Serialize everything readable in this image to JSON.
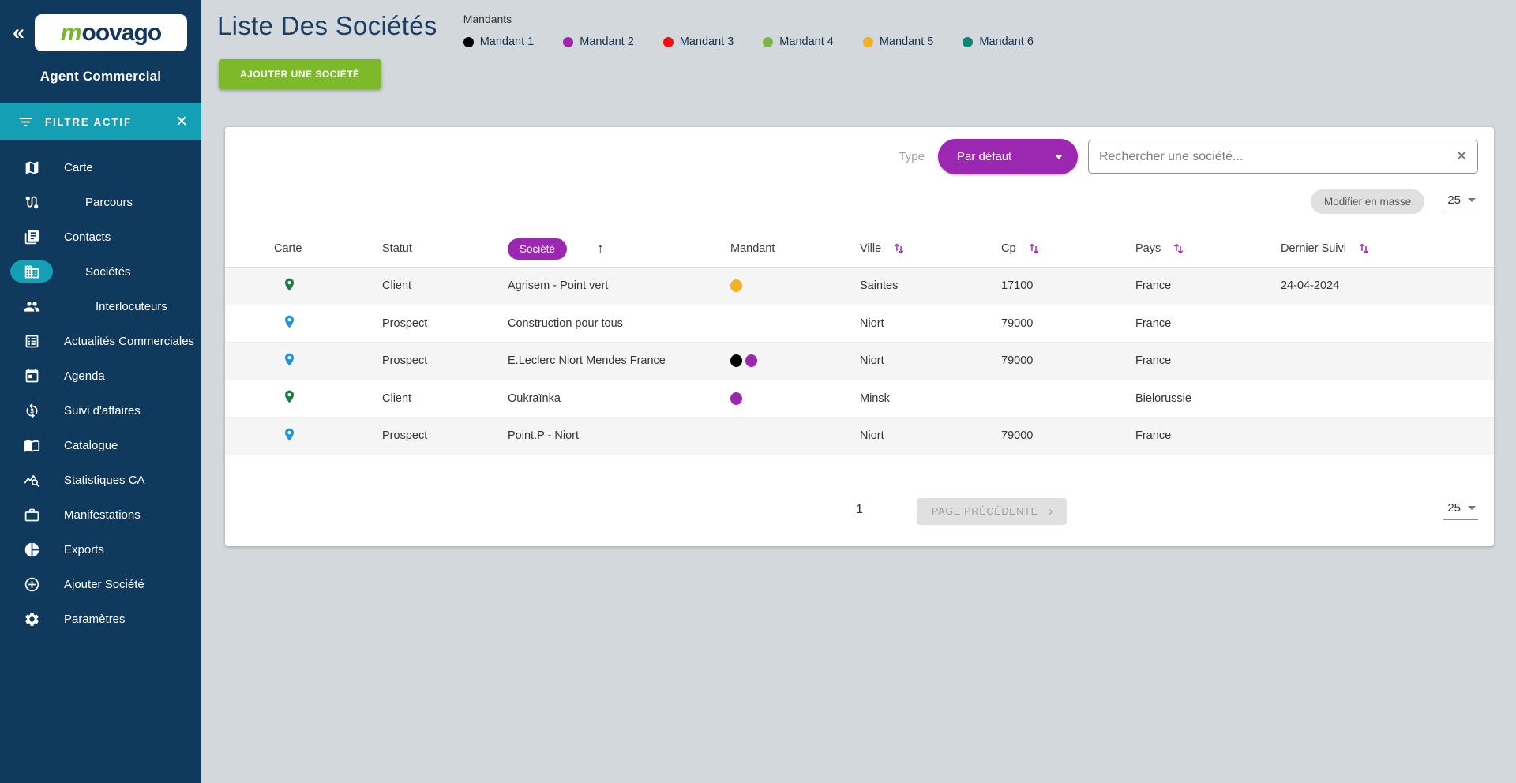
{
  "colors": {
    "sidebar_bg": "#0f3a5e",
    "teal_accent": "#149fb5",
    "purple_accent": "#9c27b0",
    "green_button": "#7db928",
    "client_pin": "#1c7c3e",
    "prospect_pin": "#2196d6"
  },
  "sidebar": {
    "collapse_glyph": "«",
    "logo": {
      "first": "m",
      "rest": "oovago"
    },
    "subtitle": "Agent Commercial",
    "filter_bar": {
      "label": "FILTRE ACTIF",
      "close_glyph": "✕"
    },
    "items": [
      {
        "id": "carte",
        "label": "Carte",
        "icon": "map",
        "indent": 0,
        "active": false
      },
      {
        "id": "parcours",
        "label": "Parcours",
        "icon": "route",
        "indent": 1,
        "active": false
      },
      {
        "id": "contacts",
        "label": "Contacts",
        "icon": "contacts",
        "indent": 0,
        "active": false
      },
      {
        "id": "societes",
        "label": "Sociétés",
        "icon": "building",
        "indent": 1,
        "active": true
      },
      {
        "id": "interlocuteurs",
        "label": "Interlocuteurs",
        "icon": "people",
        "indent": 2,
        "active": false
      },
      {
        "id": "actualites-commerciales",
        "label": "Actualités Commerciales",
        "icon": "news-list",
        "indent": 0,
        "active": false
      },
      {
        "id": "agenda",
        "label": "Agenda",
        "icon": "calendar",
        "indent": 0,
        "active": false
      },
      {
        "id": "suivi-daffaires",
        "label": "Suivi d'affaires",
        "icon": "money-sync",
        "indent": 0,
        "active": false
      },
      {
        "id": "catalogue",
        "label": "Catalogue",
        "icon": "open-book",
        "indent": 0,
        "active": false
      },
      {
        "id": "statistiques-ca",
        "label": "Statistiques CA",
        "icon": "stats-search",
        "indent": 0,
        "active": false
      },
      {
        "id": "manifestations",
        "label": "Manifestations",
        "icon": "briefcase",
        "indent": 0,
        "active": false
      },
      {
        "id": "exports",
        "label": "Exports",
        "icon": "pie-chart",
        "indent": 0,
        "active": false
      },
      {
        "id": "ajouter-societe",
        "label": "Ajouter Société",
        "icon": "plus-circle",
        "indent": 0,
        "active": false
      },
      {
        "id": "parametres",
        "label": "Paramètres",
        "icon": "gear",
        "indent": 0,
        "active": false
      }
    ]
  },
  "header": {
    "title": "Liste Des Sociétés",
    "mandants_label": "Mandants",
    "mandants": [
      {
        "label": "Mandant 1",
        "color": "#000000"
      },
      {
        "label": "Mandant 2",
        "color": "#9c27b0"
      },
      {
        "label": "Mandant 3",
        "color": "#f01010"
      },
      {
        "label": "Mandant 4",
        "color": "#7cb546"
      },
      {
        "label": "Mandant 5",
        "color": "#f2b023"
      },
      {
        "label": "Mandant 6",
        "color": "#0c8671"
      }
    ],
    "add_button_label": "AJOUTER UNE SOCIÉTÉ"
  },
  "filters": {
    "type_label": "Type",
    "type_value": "Par défaut",
    "search_placeholder": "Rechercher une société...",
    "clear_glyph": "✕",
    "bulk_edit_label": "Modifier en masse",
    "page_size": "25"
  },
  "table": {
    "columns": [
      {
        "label": "Carte",
        "sort": "none",
        "pill": false
      },
      {
        "label": "Statut",
        "sort": "none",
        "pill": false
      },
      {
        "label": "Société",
        "sort": "asc",
        "pill": true
      },
      {
        "label": "Mandant",
        "sort": "none",
        "pill": false
      },
      {
        "label": "Ville",
        "sort": "both",
        "pill": false
      },
      {
        "label": "Cp",
        "sort": "both",
        "pill": false
      },
      {
        "label": "Pays",
        "sort": "both",
        "pill": false
      },
      {
        "label": "Dernier Suivi",
        "sort": "both",
        "pill": false
      }
    ],
    "rows": [
      {
        "statut": "Client",
        "societe": "Agrisem - Point vert",
        "mandant_colors": [
          "#f2b023"
        ],
        "ville": "Saintes",
        "cp": "17100",
        "pays": "France",
        "dernier_suivi": "24-04-2024"
      },
      {
        "statut": "Prospect",
        "societe": "Construction pour tous",
        "mandant_colors": [],
        "ville": "Niort",
        "cp": "79000",
        "pays": "France",
        "dernier_suivi": ""
      },
      {
        "statut": "Prospect",
        "societe": "E.Leclerc Niort Mendes France",
        "mandant_colors": [
          "#000000",
          "#9c27b0"
        ],
        "ville": "Niort",
        "cp": "79000",
        "pays": "France",
        "dernier_suivi": ""
      },
      {
        "statut": "Client",
        "societe": "Oukraïnka",
        "mandant_colors": [
          "#9c27b0"
        ],
        "ville": "Minsk",
        "cp": "",
        "pays": "Bielorussie",
        "dernier_suivi": ""
      },
      {
        "statut": "Prospect",
        "societe": "Point.P - Niort",
        "mandant_colors": [],
        "ville": "Niort",
        "cp": "79000",
        "pays": "France",
        "dernier_suivi": ""
      }
    ]
  },
  "pagination": {
    "page": "1",
    "prev_label": "PAGE PRÉCÉDENTE",
    "prev_chevron": "›",
    "page_size": "25"
  }
}
